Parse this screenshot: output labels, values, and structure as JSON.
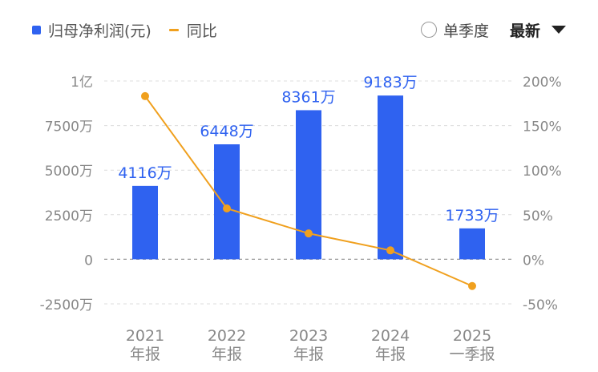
{
  "legend": {
    "bar_label": "归母净利润(元)",
    "line_label": "同比"
  },
  "controls": {
    "quarter_label": "单季度",
    "period_select": "最新"
  },
  "colors": {
    "bar": "#2f62f0",
    "line": "#f0a01e",
    "grid": "#dcdcdc",
    "axis_text": "#888888"
  },
  "chart_data": {
    "type": "bar",
    "categories": [
      [
        "2021",
        "年报"
      ],
      [
        "2022",
        "年报"
      ],
      [
        "2023",
        "年报"
      ],
      [
        "2024",
        "年报"
      ],
      [
        "2025",
        "一季报"
      ]
    ],
    "series": [
      {
        "name": "归母净利润(元)",
        "type": "bar",
        "values": [
          41160000,
          64480000,
          83610000,
          91830000,
          17330000
        ],
        "data_labels": [
          "4116万",
          "6448万",
          "8361万",
          "9183万",
          "1733万"
        ]
      },
      {
        "name": "同比",
        "type": "line",
        "axis": "right",
        "values": [
          183,
          57,
          29,
          10,
          -30
        ]
      }
    ],
    "y_left": {
      "min": -25000000,
      "max": 100000000,
      "ticks": [
        100000000,
        75000000,
        50000000,
        25000000,
        0,
        -25000000
      ],
      "tick_labels": [
        "1亿",
        "7500万",
        "5000万",
        "2500万",
        "0",
        "-2500万"
      ]
    },
    "y_right": {
      "min": -50,
      "max": 200,
      "ticks": [
        200,
        150,
        100,
        50,
        0,
        -50
      ],
      "tick_labels": [
        "200%",
        "150%",
        "100%",
        "50%",
        "0%",
        "-50%"
      ]
    },
    "grid": true
  }
}
